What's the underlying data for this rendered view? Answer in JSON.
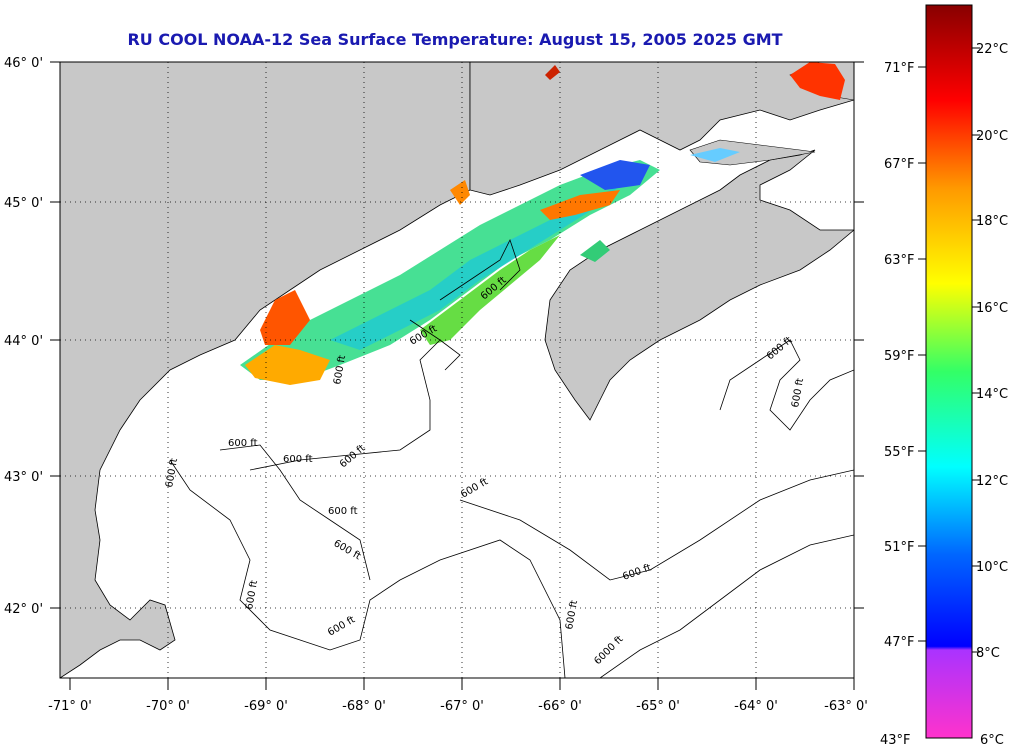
{
  "title": "RU COOL  NOAA-12  Sea Surface Temperature:  August 15, 2005 2025 GMT",
  "map": {
    "lat_labels": [
      "46° 0'",
      "45° 0'",
      "44° 0'",
      "43° 0'",
      "42° 0'"
    ],
    "lon_labels": [
      "-71° 0'",
      "-70° 0'",
      "-69° 0'",
      "-68° 0'",
      "-67° 0'",
      "-66° 0'",
      "-65° 0'",
      "-64° 0'",
      "-63° 0'"
    ],
    "contour_labels": [
      "600 ft",
      "600 ft",
      "600 ft",
      "600 ft",
      "600 ft",
      "600 ft",
      "600 ft",
      "600 ft",
      "600 ft",
      "600 ft",
      "600 ft",
      "600 ft",
      "600 ft",
      "600 ft",
      "600 ft",
      "600 ft",
      "6000 ft"
    ],
    "land_color": "#c8c8c8",
    "water_color": "#ffffff"
  },
  "colorbar": {
    "celsius_labels": [
      "22°C",
      "20°C",
      "18°C",
      "16°C",
      "14°C",
      "12°C",
      "10°C",
      "8°C",
      "6°C"
    ],
    "fahrenheit_labels": [
      "71°F",
      "67°F",
      "63°F",
      "59°F",
      "55°F",
      "51°F",
      "47°F",
      "43°F"
    ]
  }
}
